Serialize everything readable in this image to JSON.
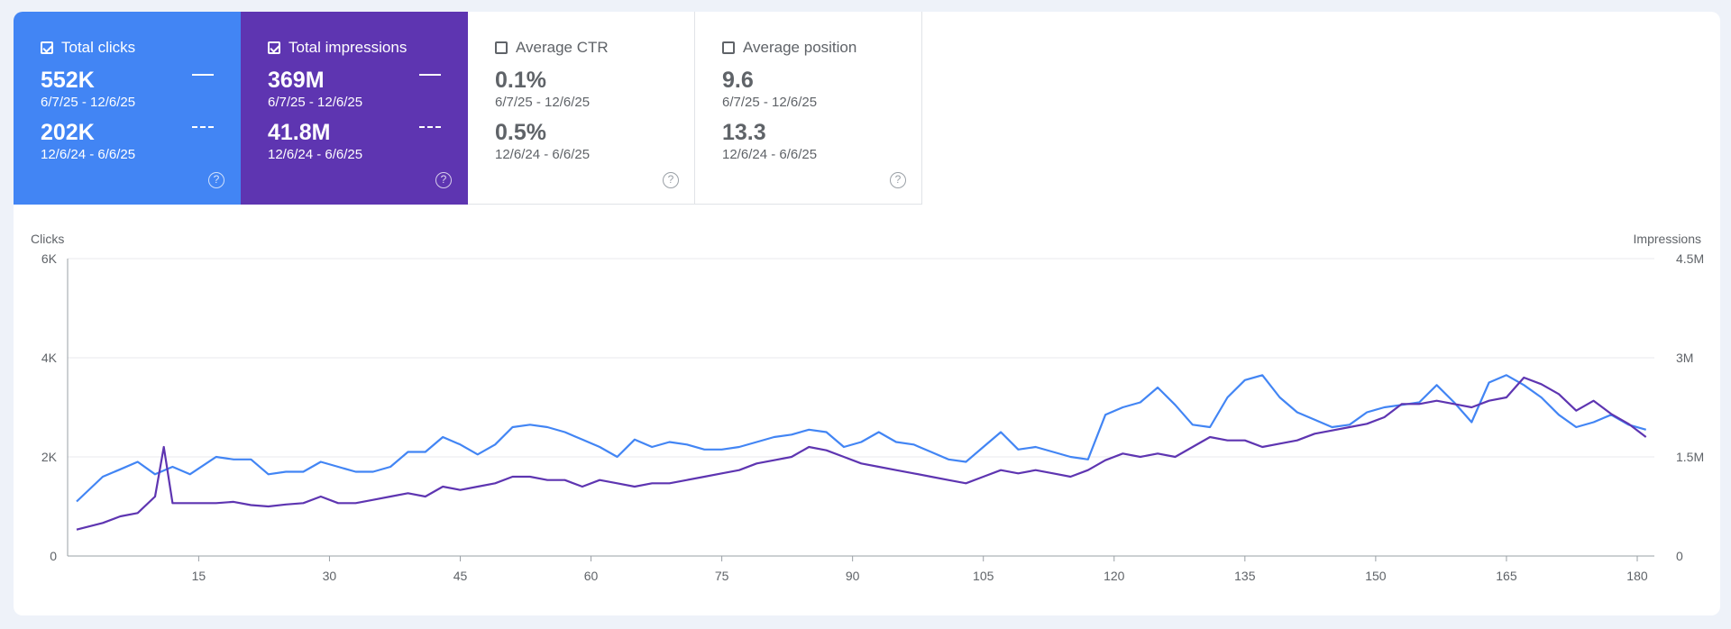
{
  "cards": [
    {
      "label": "Total clicks",
      "checked": true,
      "value": "552K",
      "range": "6/7/25 - 12/6/25",
      "prev_value": "202K",
      "prev_range": "12/6/24 - 6/6/25",
      "help": "?"
    },
    {
      "label": "Total impressions",
      "checked": true,
      "value": "369M",
      "range": "6/7/25 - 12/6/25",
      "prev_value": "41.8M",
      "prev_range": "12/6/24 - 6/6/25",
      "help": "?"
    },
    {
      "label": "Average CTR",
      "checked": false,
      "value": "0.1%",
      "range": "6/7/25 - 12/6/25",
      "prev_value": "0.5%",
      "prev_range": "12/6/24 - 6/6/25",
      "help": "?"
    },
    {
      "label": "Average position",
      "checked": false,
      "value": "9.6",
      "range": "6/7/25 - 12/6/25",
      "prev_value": "13.3",
      "prev_range": "12/6/24 - 6/6/25",
      "help": "?"
    }
  ],
  "chart_data": {
    "type": "line",
    "grid": true,
    "x": {
      "min": 1,
      "max": 183,
      "ticks": [
        15,
        30,
        45,
        60,
        75,
        90,
        105,
        120,
        135,
        150,
        165,
        180
      ]
    },
    "y_left": {
      "label": "Clicks",
      "min": 0,
      "max": 6000,
      "ticks": [
        0,
        2000,
        4000,
        6000
      ],
      "tick_labels": [
        "0",
        "2K",
        "4K",
        "6K"
      ]
    },
    "y_right": {
      "label": "Impressions",
      "min": 0,
      "max": 4500000,
      "ticks": [
        0,
        1500000,
        3000000,
        4500000
      ],
      "tick_labels": [
        "0",
        "1.5M",
        "3M",
        "4.5M"
      ]
    },
    "series": [
      {
        "key": "clicks",
        "axis": "left",
        "style": "solid",
        "color": "#4285f4",
        "points": [
          [
            1,
            1100
          ],
          [
            4,
            1600
          ],
          [
            6,
            1750
          ],
          [
            8,
            1900
          ],
          [
            10,
            1650
          ],
          [
            12,
            1800
          ],
          [
            14,
            1650
          ],
          [
            17,
            2000
          ],
          [
            19,
            1950
          ],
          [
            21,
            1950
          ],
          [
            23,
            1650
          ],
          [
            25,
            1700
          ],
          [
            27,
            1700
          ],
          [
            29,
            1900
          ],
          [
            31,
            1800
          ],
          [
            33,
            1700
          ],
          [
            35,
            1700
          ],
          [
            37,
            1800
          ],
          [
            39,
            2100
          ],
          [
            41,
            2100
          ],
          [
            43,
            2400
          ],
          [
            45,
            2250
          ],
          [
            47,
            2050
          ],
          [
            49,
            2250
          ],
          [
            51,
            2600
          ],
          [
            53,
            2650
          ],
          [
            55,
            2600
          ],
          [
            57,
            2500
          ],
          [
            59,
            2350
          ],
          [
            61,
            2200
          ],
          [
            63,
            2000
          ],
          [
            65,
            2350
          ],
          [
            67,
            2200
          ],
          [
            69,
            2300
          ],
          [
            71,
            2250
          ],
          [
            73,
            2150
          ],
          [
            75,
            2150
          ],
          [
            77,
            2200
          ],
          [
            79,
            2300
          ],
          [
            81,
            2400
          ],
          [
            83,
            2450
          ],
          [
            85,
            2550
          ],
          [
            87,
            2500
          ],
          [
            89,
            2200
          ],
          [
            91,
            2300
          ],
          [
            93,
            2500
          ],
          [
            95,
            2300
          ],
          [
            97,
            2250
          ],
          [
            99,
            2100
          ],
          [
            101,
            1950
          ],
          [
            103,
            1900
          ],
          [
            105,
            2200
          ],
          [
            107,
            2500
          ],
          [
            109,
            2150
          ],
          [
            111,
            2200
          ],
          [
            113,
            2100
          ],
          [
            115,
            2000
          ],
          [
            117,
            1950
          ],
          [
            119,
            2850
          ],
          [
            121,
            3000
          ],
          [
            123,
            3100
          ],
          [
            125,
            3400
          ],
          [
            127,
            3050
          ],
          [
            129,
            2650
          ],
          [
            131,
            2600
          ],
          [
            133,
            3200
          ],
          [
            135,
            3550
          ],
          [
            137,
            3650
          ],
          [
            139,
            3200
          ],
          [
            141,
            2900
          ],
          [
            143,
            2750
          ],
          [
            145,
            2600
          ],
          [
            147,
            2650
          ],
          [
            149,
            2900
          ],
          [
            151,
            3000
          ],
          [
            153,
            3050
          ],
          [
            155,
            3100
          ],
          [
            157,
            3450
          ],
          [
            159,
            3100
          ],
          [
            161,
            2700
          ],
          [
            163,
            3500
          ],
          [
            165,
            3650
          ],
          [
            167,
            3450
          ],
          [
            169,
            3200
          ],
          [
            171,
            2850
          ],
          [
            173,
            2600
          ],
          [
            175,
            2700
          ],
          [
            177,
            2850
          ],
          [
            179,
            2650
          ],
          [
            181,
            2550
          ]
        ]
      },
      {
        "key": "impressions",
        "axis": "right",
        "style": "solid",
        "color": "#5e35b1",
        "points": [
          [
            1,
            400000
          ],
          [
            4,
            500000
          ],
          [
            6,
            600000
          ],
          [
            8,
            650000
          ],
          [
            10,
            900000
          ],
          [
            11,
            1650000
          ],
          [
            12,
            800000
          ],
          [
            14,
            800000
          ],
          [
            17,
            800000
          ],
          [
            19,
            820000
          ],
          [
            21,
            770000
          ],
          [
            23,
            750000
          ],
          [
            25,
            780000
          ],
          [
            27,
            800000
          ],
          [
            29,
            900000
          ],
          [
            31,
            800000
          ],
          [
            33,
            800000
          ],
          [
            35,
            850000
          ],
          [
            37,
            900000
          ],
          [
            39,
            950000
          ],
          [
            41,
            900000
          ],
          [
            43,
            1050000
          ],
          [
            45,
            1000000
          ],
          [
            47,
            1050000
          ],
          [
            49,
            1100000
          ],
          [
            51,
            1200000
          ],
          [
            53,
            1200000
          ],
          [
            55,
            1150000
          ],
          [
            57,
            1150000
          ],
          [
            59,
            1050000
          ],
          [
            61,
            1150000
          ],
          [
            63,
            1100000
          ],
          [
            65,
            1050000
          ],
          [
            67,
            1100000
          ],
          [
            69,
            1100000
          ],
          [
            71,
            1150000
          ],
          [
            73,
            1200000
          ],
          [
            75,
            1250000
          ],
          [
            77,
            1300000
          ],
          [
            79,
            1400000
          ],
          [
            81,
            1450000
          ],
          [
            83,
            1500000
          ],
          [
            85,
            1650000
          ],
          [
            87,
            1600000
          ],
          [
            89,
            1500000
          ],
          [
            91,
            1400000
          ],
          [
            93,
            1350000
          ],
          [
            95,
            1300000
          ],
          [
            97,
            1250000
          ],
          [
            99,
            1200000
          ],
          [
            101,
            1150000
          ],
          [
            103,
            1100000
          ],
          [
            105,
            1200000
          ],
          [
            107,
            1300000
          ],
          [
            109,
            1250000
          ],
          [
            111,
            1300000
          ],
          [
            113,
            1250000
          ],
          [
            115,
            1200000
          ],
          [
            117,
            1300000
          ],
          [
            119,
            1450000
          ],
          [
            121,
            1550000
          ],
          [
            123,
            1500000
          ],
          [
            125,
            1550000
          ],
          [
            127,
            1500000
          ],
          [
            129,
            1650000
          ],
          [
            131,
            1800000
          ],
          [
            133,
            1750000
          ],
          [
            135,
            1750000
          ],
          [
            137,
            1650000
          ],
          [
            139,
            1700000
          ],
          [
            141,
            1750000
          ],
          [
            143,
            1850000
          ],
          [
            145,
            1900000
          ],
          [
            147,
            1950000
          ],
          [
            149,
            2000000
          ],
          [
            151,
            2100000
          ],
          [
            153,
            2300000
          ],
          [
            155,
            2300000
          ],
          [
            157,
            2350000
          ],
          [
            159,
            2300000
          ],
          [
            161,
            2250000
          ],
          [
            163,
            2350000
          ],
          [
            165,
            2400000
          ],
          [
            167,
            2700000
          ],
          [
            169,
            2600000
          ],
          [
            171,
            2450000
          ],
          [
            173,
            2200000
          ],
          [
            175,
            2350000
          ],
          [
            177,
            2150000
          ],
          [
            179,
            2000000
          ],
          [
            181,
            1800000
          ]
        ]
      }
    ]
  }
}
